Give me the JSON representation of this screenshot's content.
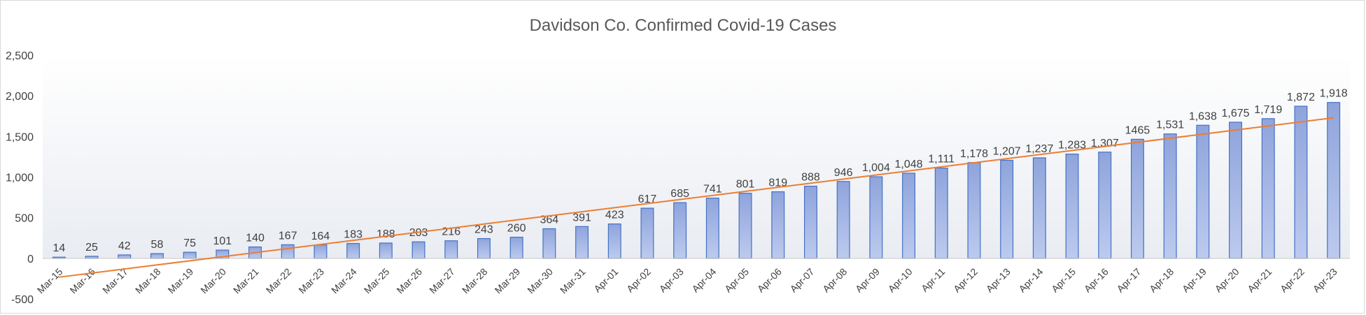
{
  "chart_data": {
    "type": "bar",
    "title": "Davidson Co. Confirmed Covid-19 Cases",
    "categories": [
      "Mar-15",
      "Mar-16",
      "Mar-17",
      "Mar-18",
      "Mar-19",
      "Mar-20",
      "Mar-21",
      "Mar-22",
      "Mar-23",
      "Mar-24",
      "Mar-25",
      "Mar-26",
      "Mar-27",
      "Mar-28",
      "Mar-29",
      "Mar-30",
      "Mar-31",
      "Apr-01",
      "Apr-02",
      "Apr-03",
      "Apr-04",
      "Apr-05",
      "Apr-06",
      "Apr-07",
      "Apr-08",
      "Apr-09",
      "Apr-10",
      "Apr-11",
      "Apr-12",
      "Apr-13",
      "Apr-14",
      "Apr-15",
      "Apr-16",
      "Apr-17",
      "Apr-18",
      "Apr-19",
      "Apr-20",
      "Apr-21",
      "Apr-22",
      "Apr-23"
    ],
    "values": [
      14,
      25,
      42,
      58,
      75,
      101,
      140,
      167,
      164,
      183,
      188,
      203,
      216,
      243,
      260,
      364,
      391,
      423,
      617,
      685,
      741,
      801,
      819,
      888,
      946,
      1004,
      1048,
      1111,
      1178,
      1207,
      1237,
      1283,
      1307,
      1465,
      1531,
      1638,
      1675,
      1719,
      1872,
      1918
    ],
    "data_labels": [
      "14",
      "25",
      "42",
      "58",
      "75",
      "101",
      "140",
      "167",
      "164",
      "183",
      "188",
      "203",
      "216",
      "243",
      "260",
      "364",
      "391",
      "423",
      "617",
      "685",
      "741",
      "801",
      "819",
      "888",
      "946",
      "1,004",
      "1,048",
      "1,111",
      "1,178",
      "1,207",
      "1,237",
      "1,283",
      "1,307",
      "1465",
      "1,531",
      "1,638",
      "1,675",
      "1,719",
      "1,872",
      "1,918"
    ],
    "y_ticks": [
      -500,
      0,
      500,
      1000,
      1500,
      2000,
      2500
    ],
    "y_tick_labels": [
      "-500",
      "0",
      "500",
      "1,000",
      "1,500",
      "2,000",
      "2,500"
    ],
    "ylim": [
      -500,
      2500
    ],
    "trendline": {
      "type": "linear",
      "color": "#ED7D31"
    },
    "colors": {
      "bar_fill": "#A9B8E3",
      "bar_stroke": "#4472C4",
      "title": "#595959",
      "text": "#404040"
    },
    "grid": false,
    "legend": "none"
  }
}
